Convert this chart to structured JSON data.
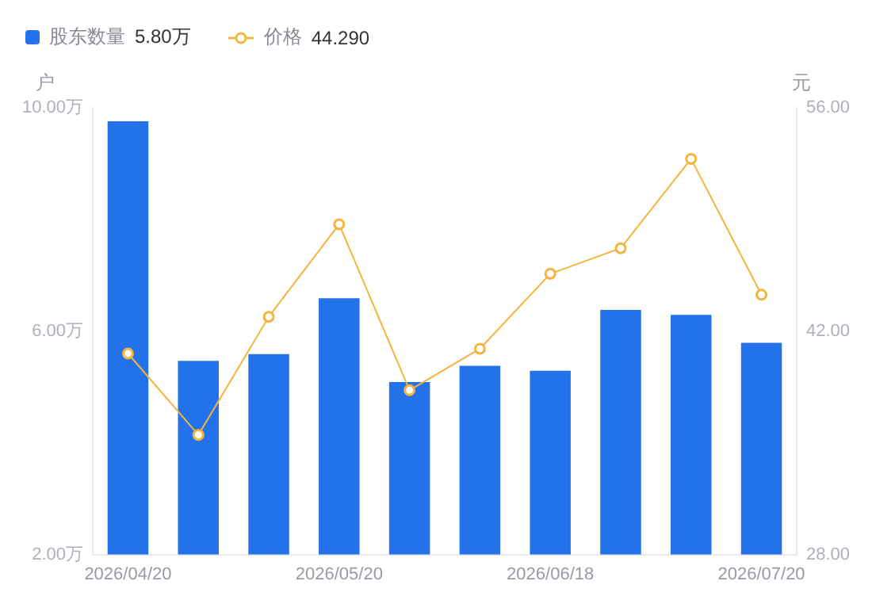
{
  "chart_data": {
    "type": "bar",
    "categories": [
      "2026/04/20",
      null,
      null,
      "2026/05/20",
      null,
      null,
      "2026/06/18",
      null,
      null,
      "2026/07/20"
    ],
    "series": [
      {
        "name": "股东数量",
        "color": "#2472ea",
        "values": [
          9.76,
          5.47,
          5.59,
          6.59,
          5.09,
          5.38,
          5.29,
          6.38,
          6.29,
          5.79
        ]
      },
      {
        "name": "价格",
        "type": "line",
        "axis": "y2",
        "color": "#f5b43c",
        "values": [
          40.6,
          35.5,
          42.9,
          48.7,
          38.3,
          40.9,
          45.6,
          47.2,
          52.8,
          44.29
        ]
      }
    ],
    "annotations": [
      "5.80万",
      "44.290"
    ],
    "ylabel": "户",
    "y2label": "元",
    "ylim": [
      2,
      10
    ],
    "yticks": [
      {
        "value": 2,
        "label": "2.00万"
      },
      {
        "value": 6,
        "label": "6.00万"
      },
      {
        "value": 10,
        "label": "10.00万"
      }
    ],
    "y2lim": [
      28,
      56
    ],
    "y2ticks": [
      {
        "value": 28,
        "label": "28.00"
      },
      {
        "value": 42,
        "label": "42.00"
      },
      {
        "value": 56,
        "label": "56.00"
      }
    ],
    "legend": "top left",
    "marker": "circle",
    "line_style": "solid",
    "grid": false
  }
}
